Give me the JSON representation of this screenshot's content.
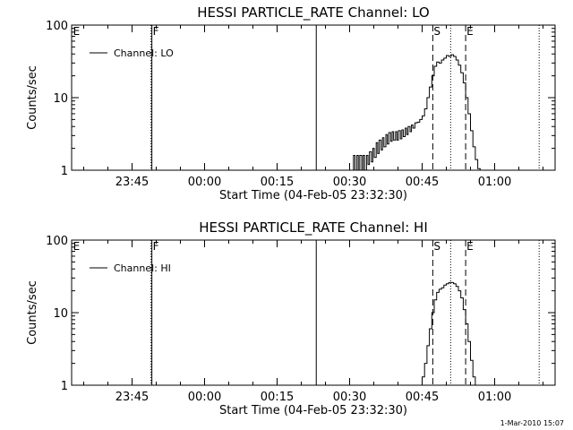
{
  "footer": "1-Mar-2010 15:07",
  "chart_data": [
    {
      "type": "line",
      "title": "HESSI PARTICLE_RATE Channel: LO",
      "xlabel": "Start Time (04-Feb-05 23:32:30)",
      "ylabel": "Counts/sec",
      "x_unit": "minutes after 04-Feb-05 23:32:30",
      "xlim": [
        0,
        100
      ],
      "ylim": [
        1,
        100
      ],
      "yscale": "log",
      "grid": false,
      "legend": "top-left",
      "x_ticks": [
        {
          "x": 12.5,
          "label": "23:45"
        },
        {
          "x": 27.5,
          "label": "00:00"
        },
        {
          "x": 42.5,
          "label": "00:15"
        },
        {
          "x": 57.5,
          "label": "00:30"
        },
        {
          "x": 72.5,
          "label": "00:45"
        },
        {
          "x": 87.5,
          "label": "01:00"
        }
      ],
      "y_ticks": [
        {
          "y": 1,
          "label": "1"
        },
        {
          "y": 10,
          "label": "10"
        },
        {
          "y": 100,
          "label": "100"
        }
      ],
      "markers": [
        {
          "x": 0.3,
          "label": "E",
          "style": "none"
        },
        {
          "x": 16.6,
          "label": "F",
          "style": "dotted-solid"
        },
        {
          "x": 50.6,
          "label": "",
          "style": "solid"
        },
        {
          "x": 74.7,
          "label": "S",
          "style": "dashed"
        },
        {
          "x": 78.4,
          "label": "",
          "style": "dotted"
        },
        {
          "x": 81.5,
          "label": "E",
          "style": "dashed"
        },
        {
          "x": 96.7,
          "label": "",
          "style": "dotted"
        }
      ],
      "series": [
        {
          "name": "Channel: LO",
          "x": [
            58.0,
            58.3,
            58.6,
            59.0,
            59.3,
            59.6,
            60.0,
            60.3,
            60.6,
            61.0,
            61.3,
            61.6,
            62.0,
            62.3,
            62.6,
            63.0,
            63.3,
            63.6,
            64.0,
            64.3,
            64.6,
            65.0,
            65.3,
            65.6,
            66.0,
            66.3,
            66.6,
            67.0,
            67.3,
            67.6,
            68.0,
            68.3,
            68.6,
            69.0,
            69.3,
            69.6,
            70.0,
            70.3,
            70.6,
            71.0,
            71.5,
            72.0,
            72.5,
            73.0,
            73.5,
            74.0,
            74.5,
            75.0,
            75.5,
            76.0,
            76.5,
            77.0,
            77.5,
            78.0,
            78.5,
            79.0,
            79.5,
            80.0,
            80.5,
            81.0,
            81.5,
            82.0,
            82.5,
            83.0,
            83.5,
            84.0,
            84.5
          ],
          "y": [
            1.0,
            1.6,
            1.0,
            1.6,
            1.0,
            1.6,
            1.0,
            1.6,
            1.0,
            1.6,
            1.2,
            1.8,
            1.3,
            2.0,
            1.5,
            2.4,
            1.7,
            2.6,
            1.9,
            2.8,
            2.1,
            3.1,
            2.3,
            3.3,
            2.5,
            3.4,
            2.6,
            3.4,
            2.6,
            3.5,
            2.7,
            3.6,
            2.9,
            3.8,
            3.1,
            4.0,
            3.4,
            4.2,
            3.8,
            4.5,
            4.6,
            5.0,
            5.6,
            7.0,
            10.0,
            14.0,
            20.0,
            27.0,
            31.0,
            30.0,
            33.0,
            35.0,
            38.0,
            37.0,
            39.0,
            37.0,
            33.0,
            28.0,
            22.0,
            16.0,
            10.0,
            6.0,
            3.5,
            2.1,
            1.4,
            1.05,
            1.0
          ]
        }
      ]
    },
    {
      "type": "line",
      "title": "HESSI PARTICLE_RATE Channel: HI",
      "xlabel": "Start Time (04-Feb-05 23:32:30)",
      "ylabel": "Counts/sec",
      "x_unit": "minutes after 04-Feb-05 23:32:30",
      "xlim": [
        0,
        100
      ],
      "ylim": [
        1,
        100
      ],
      "yscale": "log",
      "grid": false,
      "legend": "top-left",
      "x_ticks": [
        {
          "x": 12.5,
          "label": "23:45"
        },
        {
          "x": 27.5,
          "label": "00:00"
        },
        {
          "x": 42.5,
          "label": "00:15"
        },
        {
          "x": 57.5,
          "label": "00:30"
        },
        {
          "x": 72.5,
          "label": "00:45"
        },
        {
          "x": 87.5,
          "label": "01:00"
        }
      ],
      "y_ticks": [
        {
          "y": 1,
          "label": "1"
        },
        {
          "y": 10,
          "label": "10"
        },
        {
          "y": 100,
          "label": "100"
        }
      ],
      "markers": [
        {
          "x": 0.3,
          "label": "E",
          "style": "none"
        },
        {
          "x": 16.6,
          "label": "F",
          "style": "dotted-solid"
        },
        {
          "x": 50.6,
          "label": "",
          "style": "solid"
        },
        {
          "x": 74.7,
          "label": "S",
          "style": "dashed"
        },
        {
          "x": 78.4,
          "label": "",
          "style": "dotted"
        },
        {
          "x": 81.5,
          "label": "E",
          "style": "dashed"
        },
        {
          "x": 96.7,
          "label": "",
          "style": "dotted"
        }
      ],
      "series": [
        {
          "name": "Channel: HI",
          "x": [
            72.0,
            72.5,
            73.0,
            73.5,
            74.0,
            74.5,
            75.0,
            75.5,
            76.0,
            76.5,
            77.0,
            77.5,
            78.0,
            78.5,
            79.0,
            79.5,
            80.0,
            80.5,
            81.0,
            81.5,
            82.0,
            82.5,
            83.0,
            83.5
          ],
          "y": [
            1.0,
            1.3,
            2.0,
            3.5,
            6.0,
            10.0,
            15.0,
            19.0,
            21.0,
            22.0,
            24.0,
            25.0,
            26.0,
            26.0,
            25.0,
            23.0,
            20.0,
            16.0,
            11.0,
            7.0,
            4.0,
            2.2,
            1.3,
            1.0
          ]
        }
      ]
    }
  ]
}
